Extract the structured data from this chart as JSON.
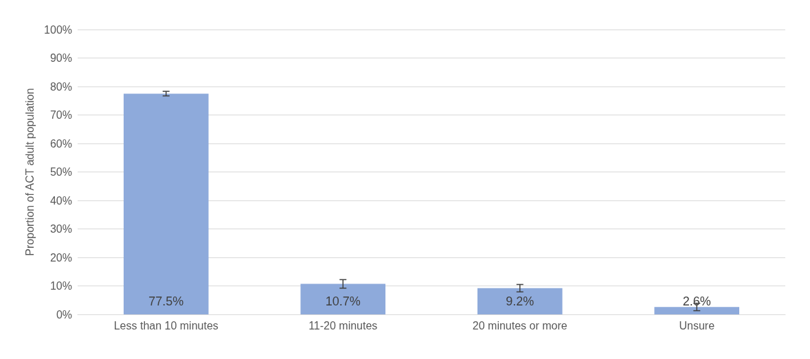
{
  "chart_data": {
    "type": "bar",
    "ylabel": "Proportion of ACT adult population",
    "categories": [
      "Less than 10 minutes",
      "11-20 minutes",
      "20 minutes or more",
      "Unsure"
    ],
    "values": [
      77.5,
      10.7,
      9.2,
      2.6
    ],
    "errors": [
      0.8,
      1.5,
      1.3,
      1.3
    ],
    "value_labels": [
      "77.5%",
      "10.7%",
      "9.2%",
      "2.6%"
    ],
    "color": "#8eaadb",
    "ylim": [
      0,
      100
    ],
    "yticks": [
      {
        "value": 0,
        "label": "0%"
      },
      {
        "value": 10,
        "label": "10%"
      },
      {
        "value": 20,
        "label": "20%"
      },
      {
        "value": 30,
        "label": "30%"
      },
      {
        "value": 40,
        "label": "40%"
      },
      {
        "value": 50,
        "label": "50%"
      },
      {
        "value": 60,
        "label": "60%"
      },
      {
        "value": 70,
        "label": "70%"
      },
      {
        "value": 80,
        "label": "80%"
      },
      {
        "value": 90,
        "label": "90%"
      },
      {
        "value": 100,
        "label": "100%"
      }
    ],
    "grid": "y"
  }
}
